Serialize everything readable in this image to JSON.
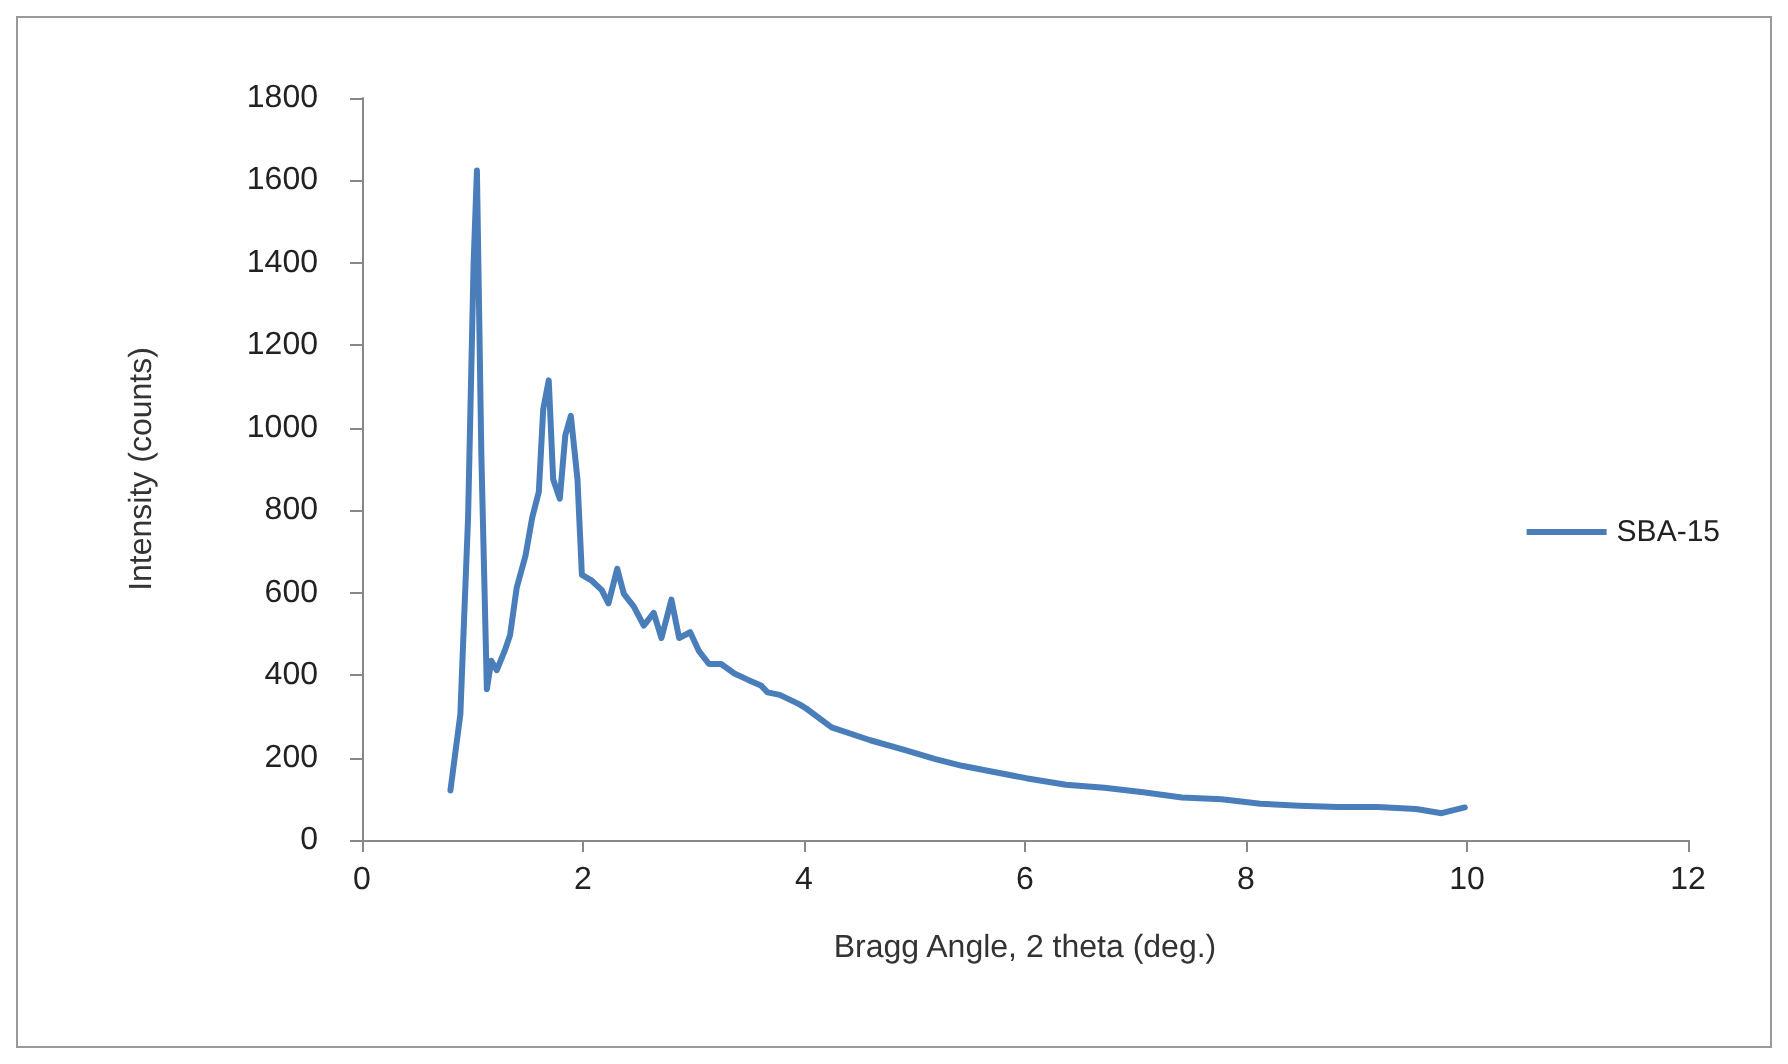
{
  "chart_data": {
    "type": "line",
    "xlabel": "Bragg Angle, 2 theta (deg.)",
    "ylabel": "Intensity (counts)",
    "xlim": [
      0,
      12
    ],
    "xticks": [
      0,
      2,
      4,
      6,
      8,
      10,
      12
    ],
    "ylim": [
      0,
      1800
    ],
    "yticks": [
      0,
      200,
      400,
      600,
      800,
      1000,
      1200,
      1400,
      1600,
      1800
    ],
    "grid": false,
    "legend": "right",
    "marker": "none",
    "line_style": "solid",
    "series": [
      {
        "name": "SBA-15",
        "color": "#4a7ebb",
        "x": [
          0.8,
          0.89,
          0.96,
          1.01,
          1.04,
          1.08,
          1.13,
          1.17,
          1.22,
          1.29,
          1.34,
          1.4,
          1.48,
          1.54,
          1.6,
          1.64,
          1.69,
          1.73,
          1.79,
          1.84,
          1.89,
          1.95,
          1.99,
          2.08,
          2.17,
          2.23,
          2.31,
          2.37,
          2.46,
          2.55,
          2.64,
          2.71,
          2.8,
          2.87,
          2.97,
          3.05,
          3.14,
          3.25,
          3.37,
          3.49,
          3.61,
          3.67,
          3.78,
          3.96,
          4.02,
          4.25,
          4.6,
          4.9,
          5.19,
          5.43,
          5.72,
          6.01,
          6.37,
          6.72,
          7.07,
          7.42,
          7.78,
          8.13,
          8.48,
          8.83,
          9.19,
          9.54,
          9.77,
          9.98
        ],
        "values": [
          120,
          305,
          782,
          1399,
          1624,
          936,
          366,
          435,
          412,
          458,
          497,
          612,
          690,
          782,
          844,
          1045,
          1115,
          875,
          828,
          982,
          1029,
          875,
          643,
          629,
          606,
          574,
          658,
          597,
          566,
          520,
          551,
          490,
          583,
          490,
          504,
          458,
          427,
          427,
          404,
          389,
          375,
          358,
          352,
          329,
          319,
          273,
          242,
          219,
          196,
          180,
          165,
          150,
          134,
          127,
          116,
          103,
          99,
          88,
          83,
          80,
          80,
          75,
          65,
          79
        ]
      }
    ]
  }
}
